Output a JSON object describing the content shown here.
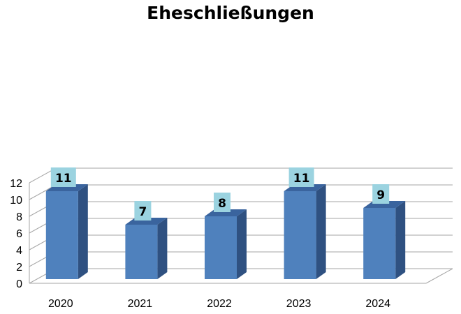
{
  "chart_data": {
    "type": "bar",
    "title": "Eheschließungen",
    "categories": [
      "2020",
      "2021",
      "2022",
      "2023",
      "2024"
    ],
    "values": [
      11,
      7,
      8,
      11,
      9
    ],
    "data_labels": [
      "11",
      "7",
      "8",
      "11",
      "9"
    ],
    "ylim": [
      0,
      12
    ],
    "yticks": [
      "0",
      "2",
      "4",
      "6",
      "8",
      "10",
      "12"
    ],
    "xlabel": "",
    "ylabel": "",
    "grid": true,
    "legend": "none",
    "style": "3d-column",
    "colors": {
      "bar_front": "#4F81BD",
      "bar_side": "#2F5181",
      "bar_top": "#3A649E",
      "label_box": "#9BD3E0",
      "grid": "#A6A6A6"
    }
  }
}
